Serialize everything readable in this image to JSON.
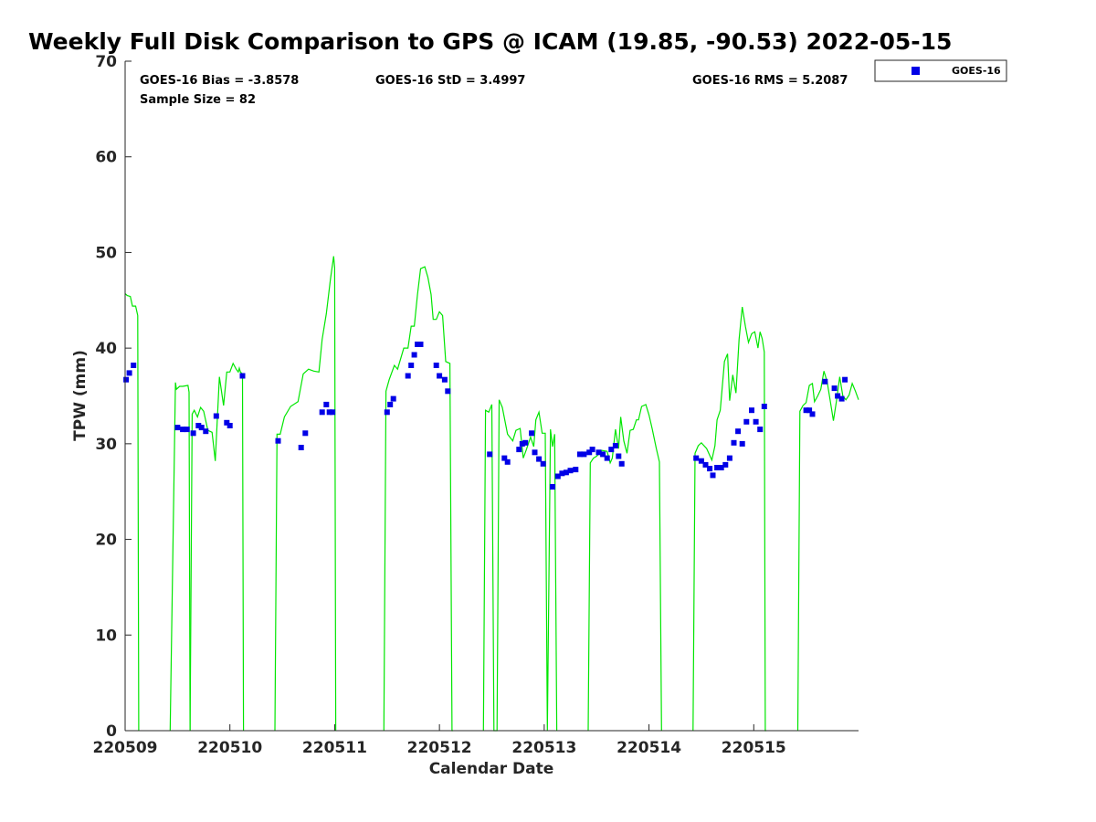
{
  "chart_data": {
    "type": "scatter",
    "title": "Weekly Full Disk Comparison to GPS @ ICAM (19.85, -90.53) 2022-05-15",
    "xlabel": "Calendar Date",
    "ylabel": "TPW (mm)",
    "xlim": [
      0,
      7
    ],
    "ylim": [
      0,
      70
    ],
    "xtick_values": [
      0,
      1,
      2,
      3,
      4,
      5,
      6
    ],
    "xtick_labels": [
      "220509",
      "220510",
      "220511",
      "220512",
      "220513",
      "220514",
      "220515"
    ],
    "ytick_values": [
      0,
      10,
      20,
      30,
      40,
      50,
      60,
      70
    ],
    "ytick_labels": [
      "0",
      "10",
      "20",
      "30",
      "40",
      "50",
      "60",
      "70"
    ],
    "stats": {
      "bias": "GOES-16 Bias = -3.8578",
      "std": "GOES-16 StD = 3.4997",
      "rms": "GOES-16 RMS = 5.2087",
      "sample": "Sample Size = 82"
    },
    "legend": {
      "label": "GOES-16",
      "position": "top-right",
      "color": "#0000e6"
    },
    "series": [
      {
        "name": "GOES-16",
        "type": "scatter",
        "color": "#0000e6",
        "x": [
          0.01,
          0.04,
          0.08,
          0.5,
          0.55,
          0.59,
          0.65,
          0.7,
          0.73,
          0.77,
          0.87,
          0.97,
          1.0,
          1.12,
          1.46,
          1.68,
          1.72,
          1.88,
          1.92,
          1.95,
          1.98,
          2.5,
          2.53,
          2.56,
          2.7,
          2.73,
          2.76,
          2.79,
          2.82,
          2.97,
          3.0,
          3.05,
          3.08,
          3.48,
          3.62,
          3.65,
          3.76,
          3.79,
          3.82,
          3.88,
          3.91,
          3.95,
          3.99,
          4.08,
          4.13,
          4.17,
          4.21,
          4.25,
          4.3,
          4.34,
          4.38,
          4.43,
          4.46,
          4.52,
          4.56,
          4.6,
          4.64,
          4.68,
          4.71,
          4.74,
          5.45,
          5.5,
          5.54,
          5.58,
          5.61,
          5.65,
          5.69,
          5.73,
          5.77,
          5.81,
          5.85,
          5.89,
          5.93,
          5.98,
          6.02,
          6.06,
          6.1,
          6.5,
          6.53,
          6.56,
          6.68,
          6.77,
          6.8,
          6.84,
          6.87
        ],
        "y": [
          36.7,
          37.4,
          38.2,
          31.7,
          31.5,
          31.5,
          31.1,
          31.9,
          31.7,
          31.3,
          32.9,
          32.2,
          31.9,
          37.1,
          30.3,
          29.6,
          31.1,
          33.3,
          34.1,
          33.3,
          33.3,
          33.3,
          34.1,
          34.7,
          37.1,
          38.2,
          39.3,
          40.4,
          40.4,
          38.2,
          37.1,
          36.7,
          35.5,
          28.9,
          28.5,
          28.1,
          29.4,
          30.0,
          30.1,
          31.1,
          29.1,
          28.4,
          27.9,
          25.5,
          26.6,
          26.9,
          27.0,
          27.2,
          27.3,
          28.9,
          28.9,
          29.1,
          29.4,
          29.1,
          28.9,
          28.5,
          29.4,
          29.8,
          28.7,
          27.9,
          28.5,
          28.2,
          27.8,
          27.4,
          26.7,
          27.5,
          27.5,
          27.8,
          28.5,
          30.1,
          31.3,
          30.0,
          32.3,
          33.5,
          32.3,
          31.5,
          33.9,
          33.5,
          33.5,
          33.1,
          36.5,
          35.8,
          35.0,
          34.7,
          36.7
        ]
      },
      {
        "name": "GPS",
        "type": "line",
        "color": "#00e600",
        "segments": [
          {
            "x": [
              0.0,
              0.02,
              0.05,
              0.07,
              0.1,
              0.12,
              0.13
            ],
            "y": [
              45.7,
              45.5,
              45.4,
              44.4,
              44.4,
              43.4,
              0
            ]
          },
          {
            "x": [
              0.43,
              0.48,
              0.49,
              0.52,
              0.55,
              0.6,
              0.61,
              0.62
            ],
            "y": [
              0,
              36.4,
              35.7,
              36.0,
              36.0,
              36.1,
              35.4,
              0
            ]
          },
          {
            "x": [
              0.62,
              0.64,
              0.66,
              0.69,
              0.72,
              0.75,
              0.79,
              0.83,
              0.86,
              0.9,
              0.94,
              0.97,
              1.0,
              1.03,
              1.06,
              1.08,
              1.09,
              1.1,
              1.12,
              1.13
            ],
            "y": [
              0,
              33.1,
              33.5,
              32.8,
              33.8,
              33.4,
              31.4,
              31.2,
              28.2,
              37.0,
              34.0,
              37.5,
              37.5,
              38.4,
              37.8,
              37.5,
              37.9,
              37.5,
              37.3,
              0
            ]
          },
          {
            "x": [
              1.43,
              1.45,
              1.48,
              1.52,
              1.58,
              1.65,
              1.7,
              1.75,
              1.8,
              1.85,
              1.88,
              1.92,
              1.96,
              1.99,
              2.0,
              2.01
            ],
            "y": [
              0,
              31.0,
              31.0,
              32.8,
              33.9,
              34.4,
              37.3,
              37.8,
              37.6,
              37.5,
              40.9,
              43.6,
              47.2,
              49.6,
              48.4,
              0
            ]
          },
          {
            "x": [
              2.47,
              2.49,
              2.52,
              2.57,
              2.6,
              2.66,
              2.7,
              2.73,
              2.76,
              2.79,
              2.82,
              2.86,
              2.89,
              2.92,
              2.94,
              2.97,
              3.0,
              3.03,
              3.06,
              3.1,
              3.12,
              3.13
            ],
            "y": [
              0,
              35.5,
              36.7,
              38.2,
              37.8,
              40.0,
              40.0,
              42.3,
              42.3,
              45.6,
              48.3,
              48.5,
              47.4,
              45.6,
              43.0,
              43.0,
              43.8,
              43.4,
              38.6,
              38.4,
              0,
              0
            ]
          },
          {
            "x": [
              3.42,
              3.44,
              3.47,
              3.5,
              3.52,
              3.55,
              3.57,
              3.6,
              3.65,
              3.7,
              3.73,
              3.77,
              3.8,
              3.83,
              3.87,
              3.9,
              3.92,
              3.95,
              3.98,
              4.01,
              4.03,
              4.06,
              4.08,
              4.1,
              4.12
            ],
            "y": [
              0,
              33.5,
              33.3,
              34.1,
              0,
              0,
              34.6,
              33.8,
              31.0,
              30.3,
              31.4,
              31.6,
              28.5,
              29.4,
              30.7,
              29.7,
              32.5,
              33.3,
              31.1,
              31.1,
              0,
              31.5,
              29.7,
              31.0,
              0
            ]
          },
          {
            "x": [
              4.42,
              4.44,
              4.47,
              4.5,
              4.55,
              4.6,
              4.63,
              4.65,
              4.68,
              4.71,
              4.73,
              4.76,
              4.79,
              4.82,
              4.85,
              4.88,
              4.9,
              4.93,
              4.97,
              5.0,
              5.03,
              5.07,
              5.1,
              5.12
            ],
            "y": [
              0,
              28.0,
              28.5,
              28.7,
              29.3,
              29.2,
              28.0,
              28.5,
              31.5,
              29.5,
              32.8,
              30.3,
              29.0,
              31.4,
              31.5,
              32.5,
              32.5,
              33.9,
              34.1,
              33.0,
              31.6,
              29.5,
              28.1,
              0
            ]
          },
          {
            "x": [
              5.42,
              5.44,
              5.47,
              5.5,
              5.55,
              5.6,
              5.63,
              5.65,
              5.68,
              5.72,
              5.75,
              5.77,
              5.8,
              5.83,
              5.86,
              5.89,
              5.92,
              5.95,
              5.98,
              6.01,
              6.04,
              6.06,
              6.08,
              6.1,
              6.11,
              6.12
            ],
            "y": [
              0,
              29.0,
              29.8,
              30.1,
              29.5,
              28.3,
              29.8,
              32.5,
              33.5,
              38.6,
              39.4,
              34.5,
              37.2,
              35.3,
              40.9,
              44.3,
              42.3,
              40.6,
              41.5,
              41.7,
              40.0,
              41.7,
              41.0,
              39.6,
              0,
              0
            ]
          },
          {
            "x": [
              6.42,
              6.44,
              6.47,
              6.5,
              6.53,
              6.56,
              6.58,
              6.61,
              6.64,
              6.67,
              6.7,
              6.73,
              6.76,
              6.79,
              6.82,
              6.85,
              6.88,
              6.91,
              6.94,
              6.97,
              7.0
            ],
            "y": [
              0,
              33.4,
              34.0,
              34.3,
              36.1,
              36.3,
              34.4,
              35.0,
              35.7,
              37.6,
              36.5,
              34.5,
              32.4,
              34.5,
              37.0,
              35.0,
              34.6,
              35.1,
              36.3,
              35.5,
              34.6
            ]
          }
        ]
      }
    ]
  }
}
